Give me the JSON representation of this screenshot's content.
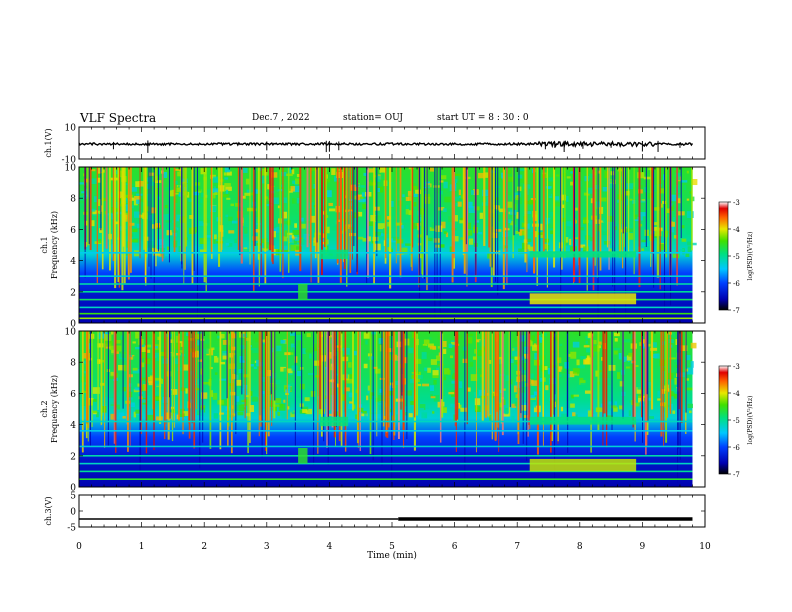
{
  "header": {
    "title": "VLF Spectra",
    "date": "Dec.7 , 2022",
    "station": "station= OUJ",
    "start_ut": "start UT = 8 : 30 : 0"
  },
  "chart_data": [
    {
      "type": "line",
      "panel": "ch1-waveform",
      "ylabel": "ch.1(V)",
      "y_ticks": [
        "10",
        "-10"
      ],
      "ylim": [
        -10,
        10
      ],
      "x_range_min": [
        0,
        10
      ],
      "data_extent_min": [
        0,
        9.8
      ],
      "series": [
        {
          "values_description_mean": 0,
          "color": "#000000"
        }
      ],
      "bursts_min": [
        0.55,
        1.1,
        3.0,
        3.95,
        4.0,
        4.15,
        7.45,
        7.6,
        7.75,
        8.05,
        8.5,
        9.0,
        9.25,
        9.6
      ]
    },
    {
      "type": "heatmap",
      "panel": "ch1-spectrogram",
      "ylabel": "ch.1\nFrequency (kHz)",
      "y_ticks": [
        "0",
        "2",
        "4",
        "6",
        "8",
        "10"
      ],
      "ylim_khz": [
        0,
        10
      ],
      "x_range_min": [
        0,
        10
      ],
      "data_extent_min": [
        0,
        9.8
      ],
      "colorbar": {
        "label": "log(PSD)(V²/Hz)",
        "ticks": [
          "-3",
          "-4",
          "-5",
          "-6",
          "-7"
        ],
        "range": [
          -7,
          -3
        ]
      },
      "bands_khz": [
        {
          "f": 0.3,
          "level": -4.2
        },
        {
          "f": 0.6,
          "level": -4.5
        },
        {
          "f": 1.0,
          "level": -5.2
        },
        {
          "f": 1.5,
          "level": -4.8
        },
        {
          "f": 2.0,
          "level": -5.0
        },
        {
          "f": 2.5,
          "level": -5.1
        },
        {
          "f": 3.0,
          "level": -5.3
        },
        {
          "f": 4.5,
          "level": -5.4
        }
      ],
      "events_min": [
        {
          "t0": 7.2,
          "t1": 8.9,
          "f0": 1.2,
          "f1": 1.9,
          "level": -4.0
        },
        {
          "t0": 3.5,
          "t1": 3.65,
          "f0": 1.5,
          "f1": 2.5,
          "level": -4.6
        },
        {
          "t0": 3.85,
          "t1": 4.3,
          "f0": 4.1,
          "f1": 4.7,
          "level": -4.9
        },
        {
          "t0": 7.2,
          "t1": 8.9,
          "f0": 4.2,
          "f1": 4.6,
          "level": -4.9
        }
      ]
    },
    {
      "type": "heatmap",
      "panel": "ch2-spectrogram",
      "ylabel": "ch.2\nFrequency (kHz)",
      "y_ticks": [
        "0",
        "2",
        "4",
        "6",
        "8",
        "10"
      ],
      "ylim_khz": [
        0,
        10
      ],
      "x_range_min": [
        0,
        10
      ],
      "data_extent_min": [
        0,
        9.8
      ],
      "colorbar": {
        "label": "log(PSD)(V²/Hz)",
        "ticks": [
          "-3",
          "-4",
          "-5",
          "-6",
          "-7"
        ],
        "range": [
          -7,
          -3
        ]
      },
      "bands_khz": [
        {
          "f": 0.5,
          "level": -4.6
        },
        {
          "f": 1.0,
          "level": -5.0
        },
        {
          "f": 1.5,
          "level": -5.2
        },
        {
          "f": 2.0,
          "level": -5.1
        },
        {
          "f": 2.6,
          "level": -5.3
        },
        {
          "f": 3.6,
          "level": -5.4
        },
        {
          "f": 4.2,
          "level": -5.2
        }
      ],
      "events_min": [
        {
          "t0": 7.2,
          "t1": 8.9,
          "f0": 1.0,
          "f1": 1.8,
          "level": -4.1
        },
        {
          "t0": 3.5,
          "t1": 3.65,
          "f0": 1.5,
          "f1": 2.5,
          "level": -4.6
        },
        {
          "t0": 3.85,
          "t1": 4.3,
          "f0": 3.9,
          "f1": 4.5,
          "level": -4.9
        },
        {
          "t0": 7.2,
          "t1": 8.9,
          "f0": 4.0,
          "f1": 4.5,
          "level": -4.9
        }
      ]
    },
    {
      "type": "line",
      "panel": "ch3-waveform",
      "ylabel": "ch.3(V)",
      "y_ticks": [
        "5",
        "0",
        "-5"
      ],
      "ylim": [
        -5,
        5
      ],
      "x_range_min": [
        0,
        10
      ],
      "xlabel": "Time (min)",
      "x_ticks": [
        "0",
        "1",
        "2",
        "3",
        "4",
        "5",
        "6",
        "7",
        "8",
        "9",
        "10"
      ],
      "series": [
        {
          "segments": [
            {
              "t0": 0,
              "t1": 5.1,
              "v": -2.5,
              "weight": "thin"
            },
            {
              "t0": 5.1,
              "t1": 9.8,
              "v": -2.5,
              "weight": "thick"
            }
          ]
        }
      ]
    }
  ]
}
